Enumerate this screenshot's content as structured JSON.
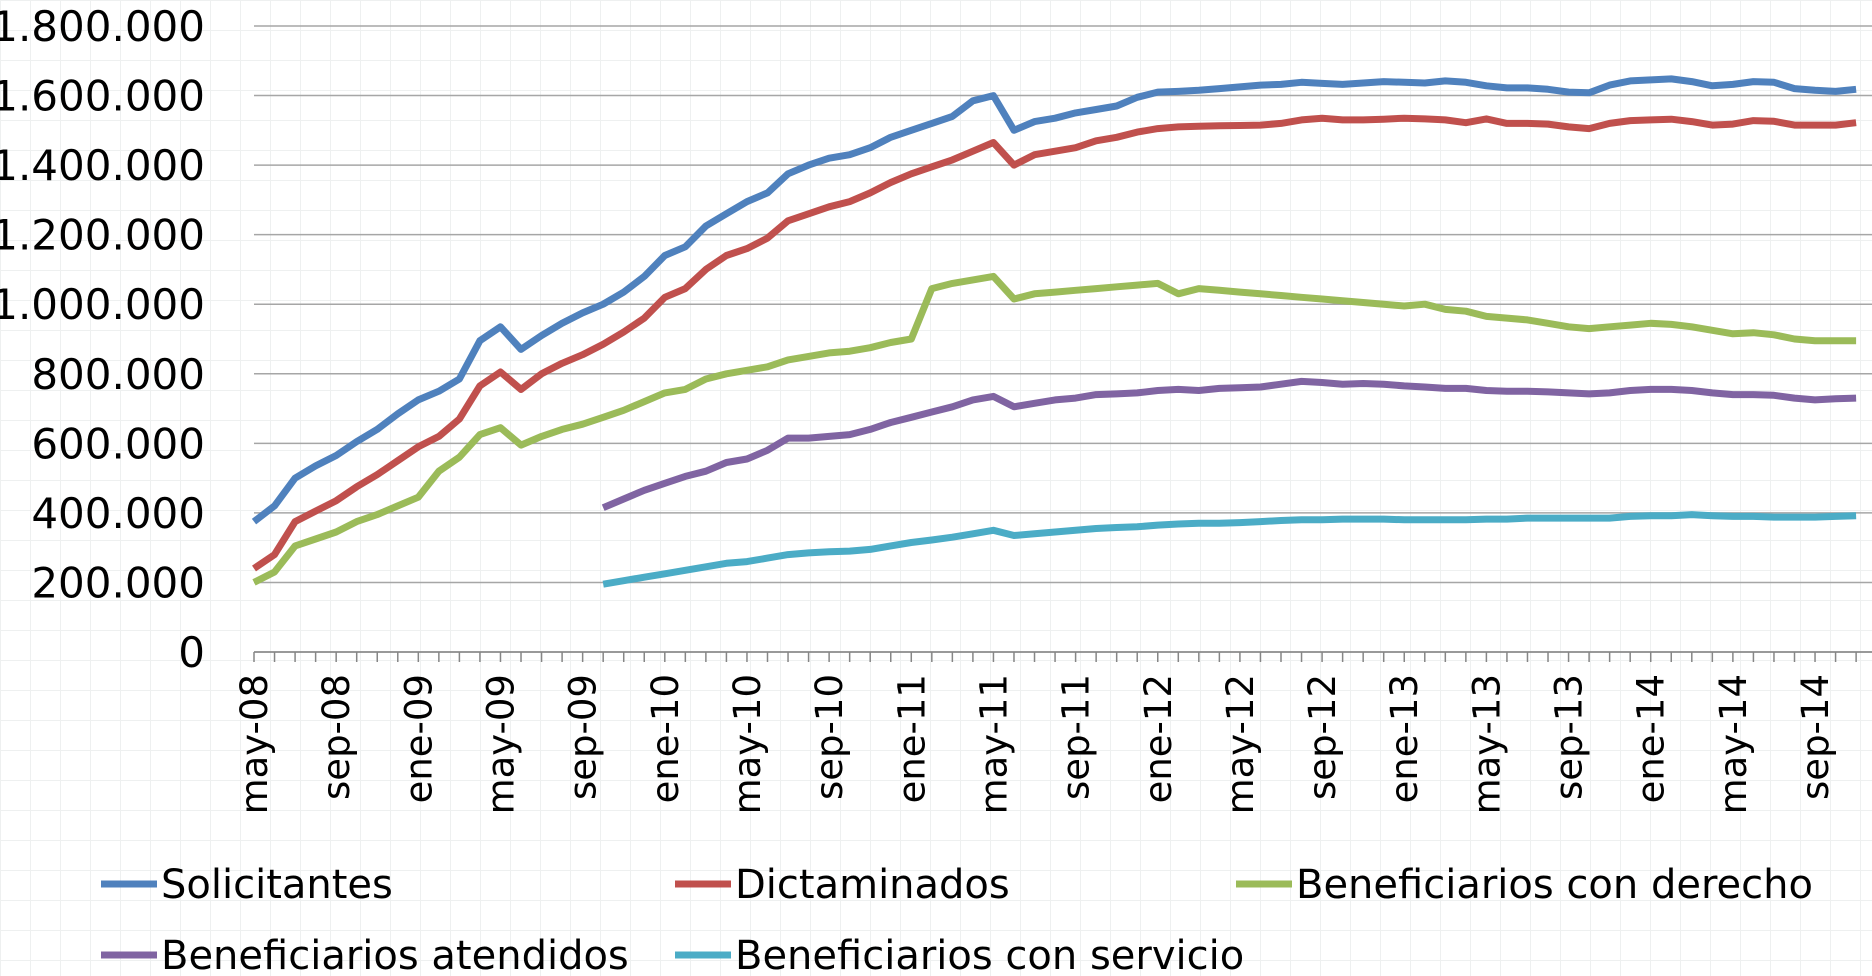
{
  "chart_data": {
    "type": "line",
    "categories": [
      "may-08",
      null,
      null,
      null,
      "sep-08",
      null,
      null,
      null,
      "ene-09",
      null,
      null,
      null,
      "may-09",
      null,
      null,
      null,
      "sep-09",
      null,
      null,
      null,
      "ene-10",
      null,
      null,
      null,
      "may-10",
      null,
      null,
      null,
      "sep-10",
      null,
      null,
      null,
      "ene-11",
      null,
      null,
      null,
      "may-11",
      null,
      null,
      null,
      "sep-11",
      null,
      null,
      null,
      "ene-12",
      null,
      null,
      null,
      "may-12",
      null,
      null,
      null,
      "sep-12",
      null,
      null,
      null,
      "ene-13",
      null,
      null,
      null,
      "may-13",
      null,
      null,
      null,
      "sep-13",
      null,
      null,
      null,
      "ene-14",
      null,
      null,
      null,
      "may-14",
      null,
      null,
      null,
      "sep-14",
      null,
      null
    ],
    "ylim": [
      0,
      1800000
    ],
    "yticks": [
      0,
      {
        "value": 200000,
        "label": "200.000"
      },
      {
        "value": 400000,
        "label": "400.000"
      },
      {
        "value": 600000,
        "label": "600.000"
      },
      {
        "value": 800000,
        "label": "800.000"
      },
      {
        "value": 1000000,
        "label": "1.000.000"
      },
      {
        "value": 1200000,
        "label": "1.200.000"
      },
      {
        "value": 1400000,
        "label": "1.400.000"
      },
      {
        "value": 1600000,
        "label": "1.600.000"
      },
      {
        "value": 1800000,
        "label": "1.800.000"
      }
    ],
    "grid": true,
    "legend": "bottom",
    "series": [
      {
        "name": "Solicitantes",
        "color": "#4f81bd",
        "values": [
          375000,
          420000,
          500000,
          535000,
          565000,
          605000,
          640000,
          685000,
          725000,
          750000,
          785000,
          895000,
          935000,
          870000,
          910000,
          945000,
          975000,
          1000000,
          1035000,
          1080000,
          1140000,
          1165000,
          1225000,
          1260000,
          1295000,
          1320000,
          1375000,
          1400000,
          1420000,
          1430000,
          1450000,
          1480000,
          1500000,
          1520000,
          1540000,
          1585000,
          1600000,
          1500000,
          1525000,
          1535000,
          1550000,
          1560000,
          1570000,
          1595000,
          1610000,
          1612000,
          1615000,
          1620000,
          1625000,
          1630000,
          1632000,
          1638000,
          1635000,
          1632000,
          1636000,
          1640000,
          1638000,
          1636000,
          1642000,
          1638000,
          1628000,
          1622000,
          1622000,
          1618000,
          1610000,
          1608000,
          1630000,
          1642000,
          1645000,
          1648000,
          1640000,
          1628000,
          1632000,
          1640000,
          1638000,
          1620000,
          1615000,
          1612000,
          1618000
        ]
      },
      {
        "name": "Dictaminados",
        "color": "#c0504d",
        "values": [
          240000,
          280000,
          375000,
          405000,
          435000,
          475000,
          510000,
          550000,
          590000,
          620000,
          670000,
          765000,
          805000,
          755000,
          800000,
          830000,
          855000,
          885000,
          920000,
          960000,
          1020000,
          1045000,
          1100000,
          1140000,
          1160000,
          1190000,
          1240000,
          1260000,
          1280000,
          1295000,
          1320000,
          1350000,
          1375000,
          1395000,
          1415000,
          1440000,
          1465000,
          1400000,
          1430000,
          1440000,
          1450000,
          1470000,
          1480000,
          1495000,
          1505000,
          1510000,
          1512000,
          1513000,
          1514000,
          1515000,
          1520000,
          1530000,
          1535000,
          1530000,
          1530000,
          1532000,
          1535000,
          1533000,
          1530000,
          1522000,
          1533000,
          1520000,
          1520000,
          1518000,
          1510000,
          1505000,
          1520000,
          1528000,
          1530000,
          1532000,
          1525000,
          1515000,
          1518000,
          1528000,
          1526000,
          1515000,
          1515000,
          1515000,
          1522000
        ]
      },
      {
        "name": "Beneficiarios con derecho",
        "color": "#9bbb59",
        "values": [
          200000,
          230000,
          305000,
          325000,
          345000,
          375000,
          395000,
          420000,
          445000,
          520000,
          560000,
          625000,
          645000,
          595000,
          620000,
          640000,
          655000,
          675000,
          695000,
          720000,
          745000,
          755000,
          785000,
          800000,
          810000,
          820000,
          840000,
          850000,
          860000,
          865000,
          875000,
          890000,
          900000,
          1045000,
          1060000,
          1070000,
          1080000,
          1015000,
          1030000,
          1035000,
          1040000,
          1045000,
          1050000,
          1055000,
          1060000,
          1030000,
          1045000,
          1040000,
          1035000,
          1030000,
          1025000,
          1020000,
          1015000,
          1010000,
          1005000,
          1000000,
          995000,
          1000000,
          985000,
          980000,
          965000,
          960000,
          955000,
          945000,
          935000,
          930000,
          935000,
          940000,
          945000,
          942000,
          935000,
          925000,
          915000,
          918000,
          912000,
          900000,
          895000,
          895000,
          895000
        ]
      },
      {
        "name": "Beneficiarios atendidos",
        "color": "#8064a2",
        "values": [
          null,
          null,
          null,
          null,
          null,
          null,
          null,
          null,
          null,
          null,
          null,
          null,
          null,
          null,
          null,
          null,
          null,
          415000,
          440000,
          465000,
          485000,
          505000,
          520000,
          545000,
          555000,
          580000,
          615000,
          615000,
          620000,
          625000,
          640000,
          660000,
          675000,
          690000,
          705000,
          725000,
          735000,
          705000,
          715000,
          725000,
          730000,
          740000,
          742000,
          745000,
          752000,
          755000,
          752000,
          758000,
          760000,
          762000,
          770000,
          778000,
          775000,
          770000,
          772000,
          770000,
          765000,
          762000,
          758000,
          758000,
          752000,
          750000,
          750000,
          748000,
          745000,
          742000,
          745000,
          752000,
          755000,
          755000,
          752000,
          745000,
          740000,
          740000,
          738000,
          730000,
          725000,
          728000,
          730000
        ]
      },
      {
        "name": "Beneficiarios con servicio",
        "color": "#4bacc6",
        "values": [
          null,
          null,
          null,
          null,
          null,
          null,
          null,
          null,
          null,
          null,
          null,
          null,
          null,
          null,
          null,
          null,
          null,
          195000,
          205000,
          215000,
          225000,
          235000,
          245000,
          255000,
          260000,
          270000,
          280000,
          285000,
          288000,
          290000,
          295000,
          305000,
          315000,
          322000,
          330000,
          340000,
          350000,
          335000,
          340000,
          345000,
          350000,
          355000,
          358000,
          360000,
          365000,
          368000,
          370000,
          370000,
          372000,
          375000,
          378000,
          380000,
          380000,
          382000,
          382000,
          382000,
          380000,
          380000,
          380000,
          380000,
          382000,
          382000,
          385000,
          385000,
          385000,
          385000,
          385000,
          390000,
          392000,
          392000,
          395000,
          392000,
          390000,
          390000,
          388000,
          388000,
          388000,
          390000,
          392000
        ]
      }
    ]
  }
}
